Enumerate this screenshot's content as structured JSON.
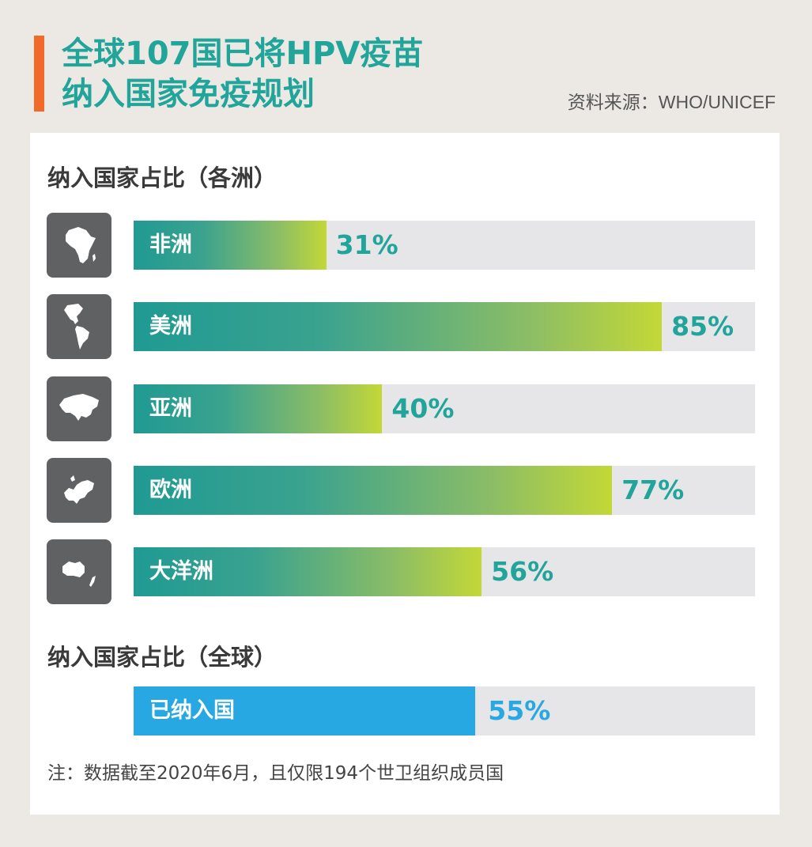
{
  "header": {
    "title_line1": "全球107国已将HPV疫苗",
    "title_line2": "纳入国家免疫规划",
    "source": "资料来源：WHO/UNICEF"
  },
  "sections": {
    "continents_title": "纳入国家占比（各洲）",
    "global_title": "纳入国家占比（全球）"
  },
  "note": "注：数据截至2020年6月，且仅限194个世卫组织成员国",
  "colors": {
    "accent": "#f26a2a",
    "title": "#21a59a",
    "gradient_start": "#1f9a93",
    "gradient_end": "#c3d837",
    "global_fill": "#27a8e2",
    "track": "#e6e6e8"
  },
  "chart_data": [
    {
      "type": "bar",
      "orientation": "horizontal",
      "title": "纳入国家占比（各洲）",
      "categories": [
        "非洲",
        "美洲",
        "亚洲",
        "欧洲",
        "大洋洲"
      ],
      "values": [
        31,
        85,
        40,
        77,
        56
      ],
      "value_labels": [
        "31%",
        "85%",
        "40%",
        "77%",
        "56%"
      ],
      "icons": [
        "africa-icon",
        "americas-icon",
        "asia-icon",
        "europe-icon",
        "oceania-icon"
      ],
      "xlim": [
        0,
        100
      ]
    },
    {
      "type": "bar",
      "orientation": "horizontal",
      "title": "纳入国家占比（全球）",
      "categories": [
        "已纳入国"
      ],
      "values": [
        55
      ],
      "value_labels": [
        "55%"
      ],
      "xlim": [
        0,
        100
      ]
    }
  ]
}
